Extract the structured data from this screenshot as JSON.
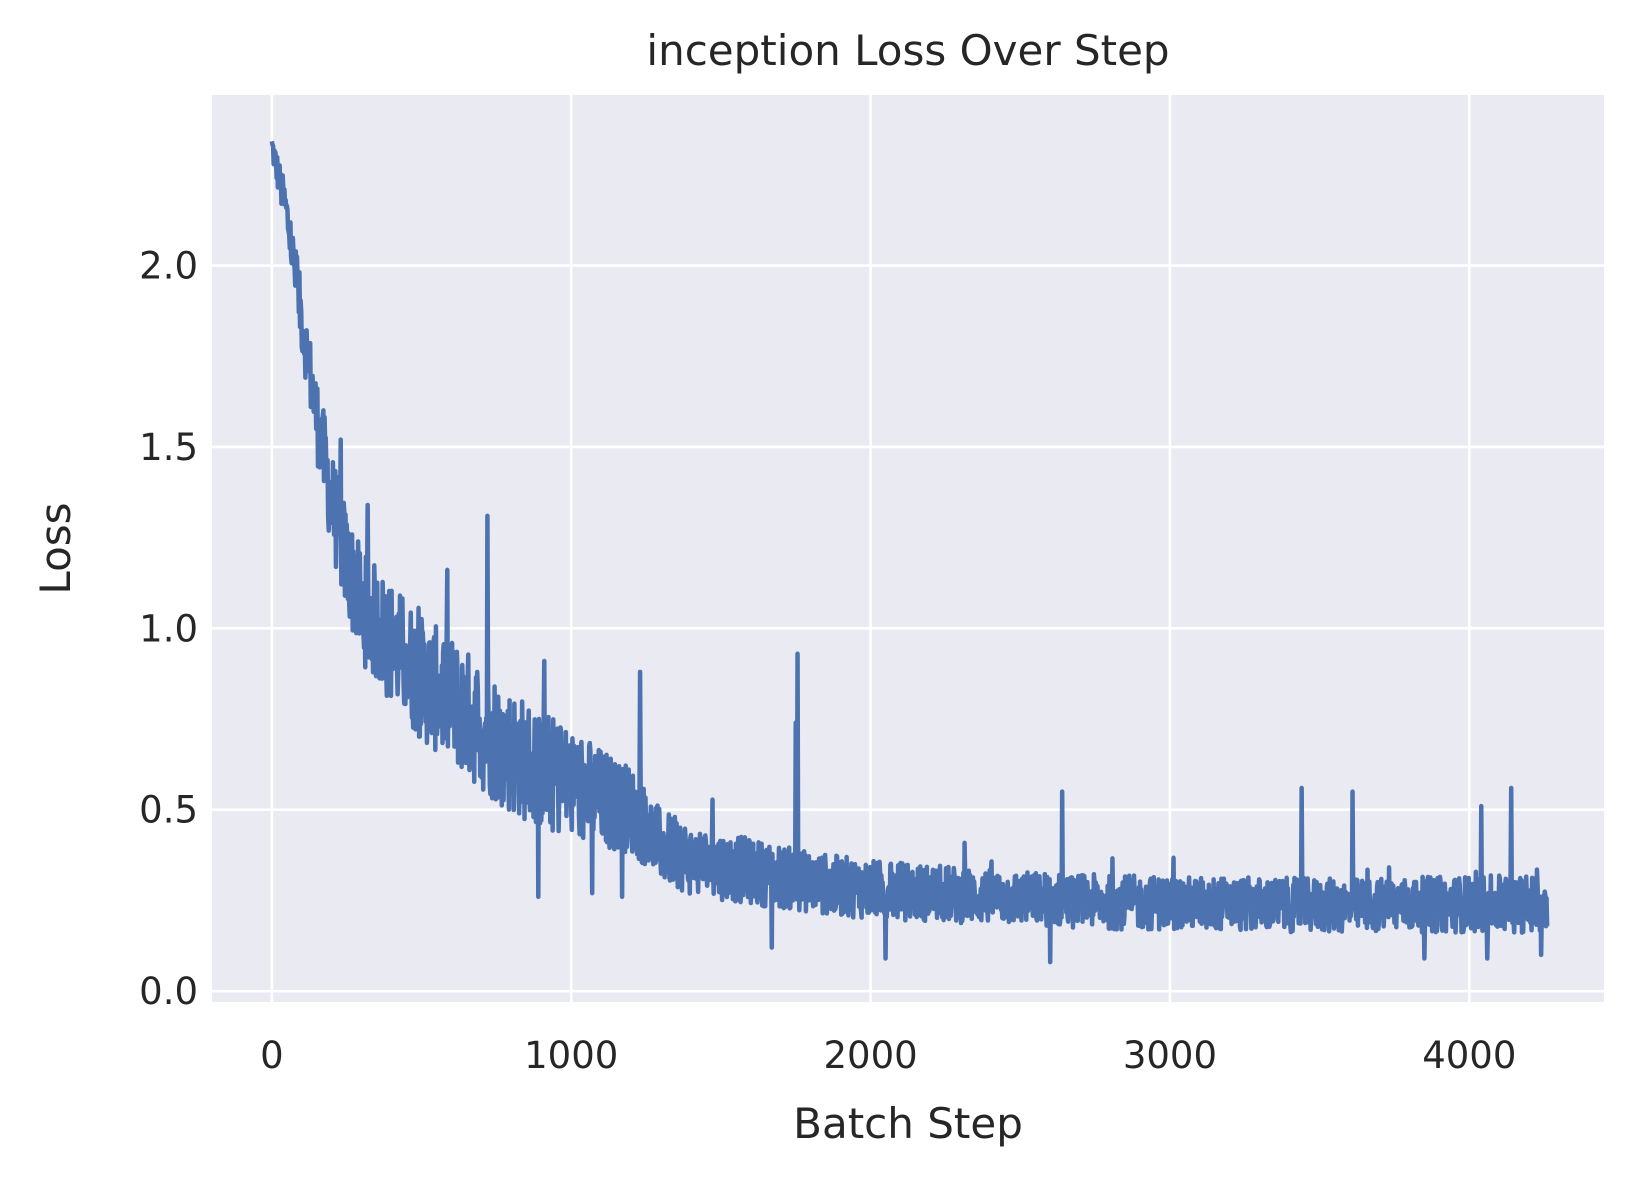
{
  "chart_data": {
    "type": "line",
    "title": "inception Loss Over Step",
    "xlabel": "Batch Step",
    "ylabel": "Loss",
    "xlim": [
      -200,
      4450
    ],
    "ylim": [
      -0.03,
      2.47
    ],
    "x_ticks": [
      0,
      1000,
      2000,
      3000,
      4000
    ],
    "x_tick_labels": [
      "0",
      "1000",
      "2000",
      "3000",
      "4000"
    ],
    "y_ticks": [
      0.0,
      0.5,
      1.0,
      1.5,
      2.0
    ],
    "y_tick_labels": [
      "0.0",
      "0.5",
      "1.0",
      "1.5",
      "2.0"
    ],
    "grid": true,
    "background": "#eaeaf2",
    "line_color": "#4c72b0",
    "series": [
      {
        "x_start": 0,
        "x_end": 4260,
        "trend": [
          [
            0,
            2.33
          ],
          [
            50,
            2.14
          ],
          [
            100,
            1.85
          ],
          [
            150,
            1.58
          ],
          [
            200,
            1.35
          ],
          [
            250,
            1.18
          ],
          [
            300,
            1.06
          ],
          [
            400,
            0.96
          ],
          [
            500,
            0.86
          ],
          [
            600,
            0.8
          ],
          [
            700,
            0.73
          ],
          [
            800,
            0.66
          ],
          [
            900,
            0.61
          ],
          [
            1000,
            0.57
          ],
          [
            1100,
            0.53
          ],
          [
            1200,
            0.5
          ],
          [
            1300,
            0.4
          ],
          [
            1400,
            0.36
          ],
          [
            1600,
            0.33
          ],
          [
            1800,
            0.3
          ],
          [
            2000,
            0.28
          ],
          [
            2400,
            0.26
          ],
          [
            2800,
            0.245
          ],
          [
            3200,
            0.24
          ],
          [
            3600,
            0.235
          ],
          [
            4000,
            0.24
          ],
          [
            4260,
            0.24
          ]
        ],
        "noise": [
          [
            0,
            0.04
          ],
          [
            200,
            0.14
          ],
          [
            400,
            0.17
          ],
          [
            700,
            0.18
          ],
          [
            1000,
            0.16
          ],
          [
            1300,
            0.1
          ],
          [
            1800,
            0.085
          ],
          [
            2500,
            0.075
          ],
          [
            3500,
            0.075
          ],
          [
            4260,
            0.08
          ]
        ],
        "spikes": [
          [
            720,
            1.31
          ],
          [
            1755,
            0.93
          ],
          [
            1750,
            0.74
          ],
          [
            230,
            1.52
          ],
          [
            320,
            1.34
          ],
          [
            910,
            0.91
          ],
          [
            1230,
            0.88
          ],
          [
            2640,
            0.55
          ],
          [
            3440,
            0.56
          ],
          [
            4140,
            0.56
          ],
          [
            4040,
            0.51
          ],
          [
            3610,
            0.55
          ]
        ],
        "dips": [
          [
            890,
            0.26
          ],
          [
            1070,
            0.27
          ],
          [
            1170,
            0.26
          ],
          [
            1670,
            0.12
          ],
          [
            2050,
            0.09
          ],
          [
            2600,
            0.08
          ],
          [
            3850,
            0.09
          ],
          [
            4060,
            0.09
          ],
          [
            4240,
            0.1
          ]
        ]
      }
    ]
  }
}
